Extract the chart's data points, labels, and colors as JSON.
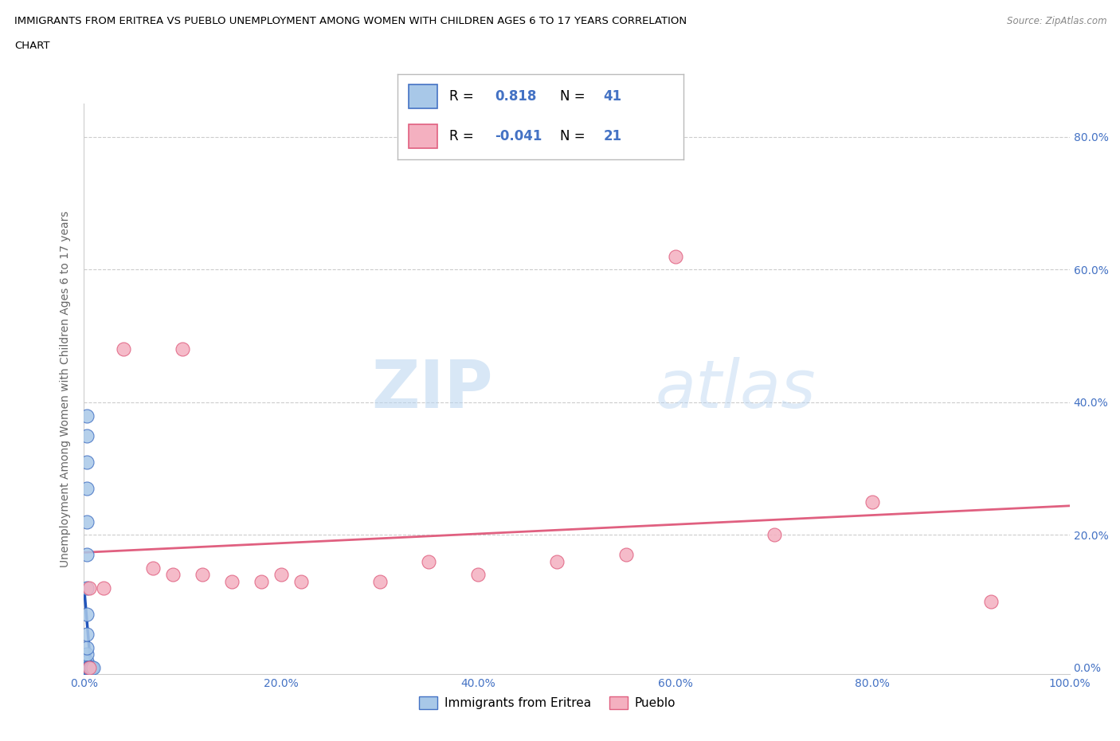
{
  "title_line1": "IMMIGRANTS FROM ERITREA VS PUEBLO UNEMPLOYMENT AMONG WOMEN WITH CHILDREN AGES 6 TO 17 YEARS CORRELATION",
  "title_line2": "CHART",
  "source": "Source: ZipAtlas.com",
  "ylabel": "Unemployment Among Women with Children Ages 6 to 17 years",
  "r_eritrea": 0.818,
  "n_eritrea": 41,
  "r_pueblo": -0.041,
  "n_pueblo": 21,
  "color_eritrea": "#a8c8e8",
  "color_eritrea_edge": "#4472c4",
  "color_eritrea_line": "#2255bb",
  "color_pueblo": "#f4b0c0",
  "color_pueblo_edge": "#e06080",
  "color_pueblo_line": "#e06080",
  "color_blue_text": "#4472c4",
  "background_color": "#ffffff",
  "watermark_zip": "ZIP",
  "watermark_atlas": "atlas",
  "xlim": [
    0.0,
    1.0
  ],
  "ylim": [
    0.0,
    0.85
  ],
  "xticks": [
    0.0,
    0.2,
    0.4,
    0.6,
    0.8,
    1.0
  ],
  "yticks": [
    0.0,
    0.2,
    0.4,
    0.6,
    0.8
  ],
  "xtick_labels": [
    "0.0%",
    "20.0%",
    "40.0%",
    "60.0%",
    "80.0%",
    "100.0%"
  ],
  "ytick_labels": [
    "0.0%",
    "20.0%",
    "40.0%",
    "60.0%",
    "80.0%"
  ],
  "eritrea_x": [
    0.002,
    0.002,
    0.002,
    0.003,
    0.003,
    0.003,
    0.003,
    0.003,
    0.003,
    0.003,
    0.003,
    0.003,
    0.003,
    0.003,
    0.003,
    0.003,
    0.003,
    0.003,
    0.003,
    0.003,
    0.003,
    0.003,
    0.003,
    0.004,
    0.004,
    0.004,
    0.004,
    0.004,
    0.005,
    0.005,
    0.005,
    0.005,
    0.006,
    0.006,
    0.006,
    0.007,
    0.007,
    0.007,
    0.008,
    0.008,
    0.009
  ],
  "eritrea_y": [
    0.0,
    0.0,
    0.0,
    0.0,
    0.0,
    0.0,
    0.0,
    0.0,
    0.0,
    0.0,
    0.0,
    0.01,
    0.02,
    0.03,
    0.05,
    0.08,
    0.12,
    0.17,
    0.22,
    0.27,
    0.31,
    0.35,
    0.38,
    0.0,
    0.0,
    0.0,
    0.0,
    0.0,
    0.0,
    0.0,
    0.0,
    0.0,
    0.0,
    0.0,
    0.0,
    0.0,
    0.0,
    0.0,
    0.0,
    0.0,
    0.0
  ],
  "pueblo_x": [
    0.005,
    0.005,
    0.02,
    0.04,
    0.07,
    0.09,
    0.1,
    0.12,
    0.15,
    0.18,
    0.2,
    0.22,
    0.3,
    0.35,
    0.4,
    0.48,
    0.55,
    0.6,
    0.7,
    0.8,
    0.92
  ],
  "pueblo_y": [
    0.0,
    0.12,
    0.12,
    0.48,
    0.15,
    0.14,
    0.48,
    0.14,
    0.13,
    0.13,
    0.14,
    0.13,
    0.13,
    0.16,
    0.14,
    0.16,
    0.17,
    0.62,
    0.2,
    0.25,
    0.1
  ]
}
